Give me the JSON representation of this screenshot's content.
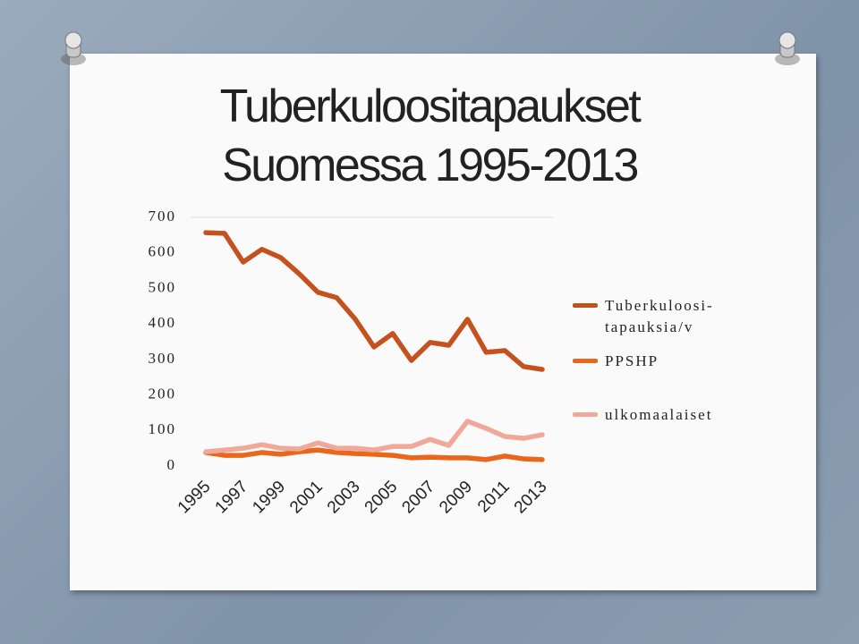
{
  "chart_data": {
    "type": "line",
    "title": "Tuberkuloositapaukset Suomessa 1995-2013",
    "categories": [
      "1995",
      null,
      "1997",
      null,
      "1999",
      null,
      "2001",
      null,
      "2003",
      null,
      "2005",
      null,
      "2007",
      null,
      "2009",
      null,
      "2011",
      null,
      "2013"
    ],
    "series": [
      {
        "name": "Tuberkuloosi-tapauksia/v",
        "color": "#c4521e",
        "values": [
          657,
          655,
          574,
          610,
          587,
          541,
          489,
          474,
          413,
          335,
          373,
          297,
          348,
          340,
          413,
          320,
          325,
          280,
          272
        ]
      },
      {
        "name": "PPSHP",
        "color": "#e8671b",
        "values": [
          38,
          30,
          30,
          38,
          33,
          40,
          45,
          38,
          35,
          33,
          30,
          23,
          25,
          23,
          23,
          18,
          28,
          20,
          18
        ]
      },
      {
        "name": "ulkomaalaiset",
        "color": "#f0a89a",
        "values": [
          40,
          45,
          50,
          60,
          50,
          48,
          65,
          50,
          50,
          45,
          55,
          55,
          75,
          58,
          126,
          106,
          83,
          78,
          88
        ]
      }
    ],
    "ylim": [
      0,
      700
    ],
    "yticks": [
      0,
      100,
      200,
      300,
      400,
      500,
      600,
      700
    ],
    "legend": "right"
  }
}
